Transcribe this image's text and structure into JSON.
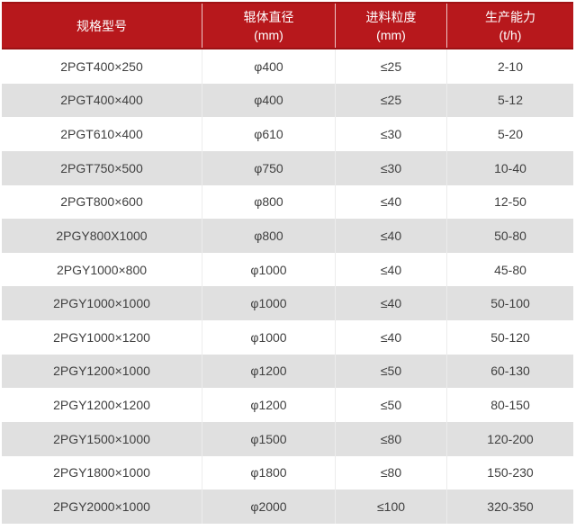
{
  "colors": {
    "header_bg": "#b7181c",
    "header_border": "#9c1215",
    "header_text": "#ffffff",
    "row_bg": "#ffffff",
    "row_alt_bg": "#e0e0e0",
    "body_text": "#404040",
    "cell_divider": "#ececec"
  },
  "chart_data": {
    "type": "table",
    "columns": [
      {
        "label": "规格型号",
        "unit": ""
      },
      {
        "label": "辊体直径",
        "unit": "(mm)"
      },
      {
        "label": "进料粒度",
        "unit": "(mm)"
      },
      {
        "label": "生产能力",
        "unit": "(t/h)"
      }
    ],
    "rows": [
      [
        "2PGT400×250",
        "φ400",
        "≤25",
        "2-10"
      ],
      [
        "2PGT400×400",
        "φ400",
        "≤25",
        "5-12"
      ],
      [
        "2PGT610×400",
        "φ610",
        "≤30",
        "5-20"
      ],
      [
        "2PGT750×500",
        "φ750",
        "≤30",
        "10-40"
      ],
      [
        "2PGT800×600",
        "φ800",
        "≤40",
        "12-50"
      ],
      [
        "2PGY800X1000",
        "φ800",
        "≤40",
        "50-80"
      ],
      [
        "2PGY1000×800",
        "φ1000",
        "≤40",
        "45-80"
      ],
      [
        "2PGY1000×1000",
        "φ1000",
        "≤40",
        "50-100"
      ],
      [
        "2PGY1000×1200",
        "φ1000",
        "≤40",
        "50-120"
      ],
      [
        "2PGY1200×1000",
        "φ1200",
        "≤50",
        "60-130"
      ],
      [
        "2PGY1200×1200",
        "φ1200",
        "≤50",
        "80-150"
      ],
      [
        "2PGY1500×1000",
        "φ1500",
        "≤80",
        "120-200"
      ],
      [
        "2PGY1800×1000",
        "φ1800",
        "≤80",
        "150-230"
      ],
      [
        "2PGY2000×1000",
        "φ2000",
        "≤100",
        "320-350"
      ]
    ]
  }
}
